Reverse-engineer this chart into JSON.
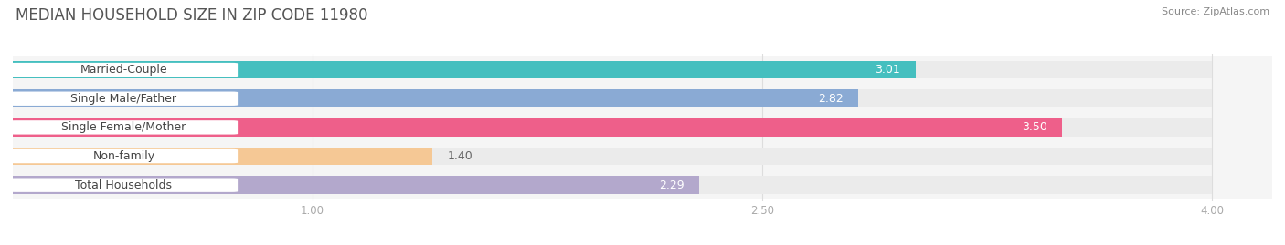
{
  "title": "MEDIAN HOUSEHOLD SIZE IN ZIP CODE 11980",
  "source": "Source: ZipAtlas.com",
  "categories": [
    "Married-Couple",
    "Single Male/Father",
    "Single Female/Mother",
    "Non-family",
    "Total Households"
  ],
  "values": [
    3.01,
    2.82,
    3.5,
    1.4,
    2.29
  ],
  "bar_colors": [
    "#45BFBF",
    "#8AAAD4",
    "#EE5F8A",
    "#F5C895",
    "#B3A8CC"
  ],
  "bar_bg_color": "#EBEBEB",
  "row_bg_colors": [
    "#F5F5F5",
    "#F5F5F5",
    "#F5F5F5",
    "#F5F5F5",
    "#F5F5F5"
  ],
  "xlim_data": [
    0,
    4.2
  ],
  "x_axis_min": 0,
  "x_axis_max": 4.0,
  "xticks": [
    1.0,
    2.5,
    4.0
  ],
  "title_fontsize": 12,
  "source_fontsize": 8,
  "label_fontsize": 9,
  "value_fontsize": 9,
  "background_color": "#FFFFFF",
  "plot_bg_color": "#F5F5F5",
  "label_box_color": "#FFFFFF",
  "label_text_color": "#444444",
  "value_text_color": "#FFFFFF",
  "tick_color": "#AAAAAA",
  "grid_color": "#DDDDDD"
}
